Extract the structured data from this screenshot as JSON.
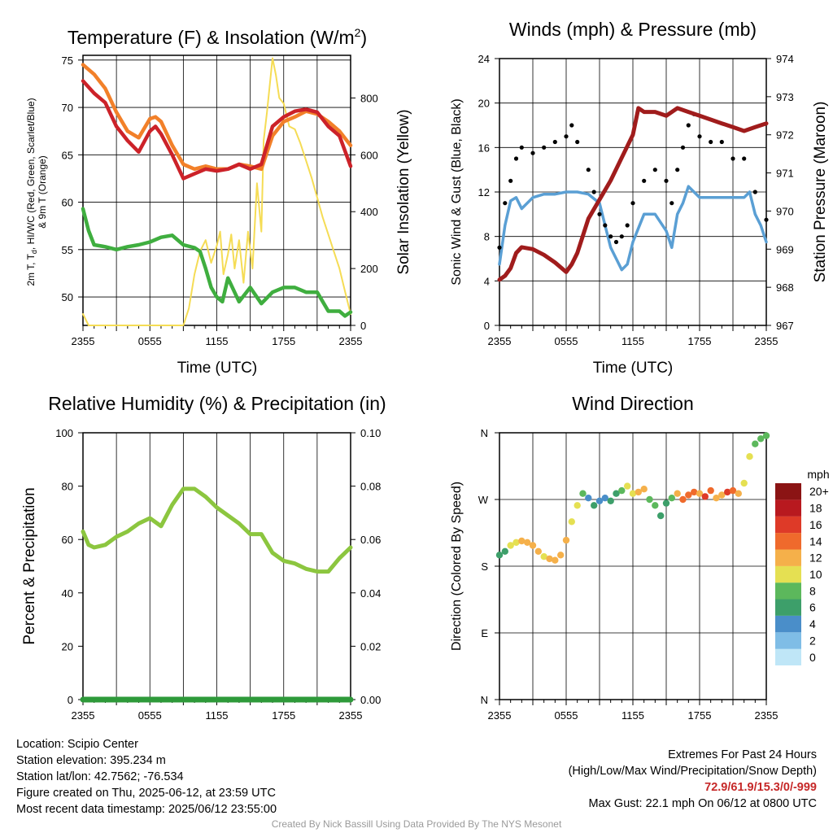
{
  "colors": {
    "red": "#cc2229",
    "orange": "#f28029",
    "green": "#3fae3f",
    "yellow": "#f5dc55",
    "blue": "#5a9fd4",
    "maroon": "#a01c1c",
    "gust": "#000000",
    "rh": "#8cc63f",
    "precip": "#2e9a3a",
    "extremes": "#c62828"
  },
  "panels": {
    "temp": {
      "title": "Temperature (F) & Insolation (W/m²)",
      "ylabel_line1": "2m T, Tₙ, HI/WC (Red, Green, Scarlet/Blue)",
      "ylabel_line1_base": "2m T, T",
      "ylabel_line1_sub": "d",
      "ylabel_line1_rest": ", HI/WC (Red, Green, Scarlet/Blue)",
      "ylabel_line2": "& 9m T (Orange)",
      "ylabel_right": "Solar Insolation (Yellow)",
      "xlabel": "Time (UTC)",
      "left_ticks": [
        "50",
        "55",
        "60",
        "65",
        "70",
        "75"
      ],
      "right_ticks": [
        "0",
        "200",
        "400",
        "600",
        "800"
      ],
      "x_ticks": [
        "2355",
        "0555",
        "1155",
        "1755",
        "2355"
      ]
    },
    "wind": {
      "title": "Winds (mph) & Pressure (mb)",
      "ylabel_left": "Sonic Wind & Gust (Blue, Black)",
      "ylabel_right": "Station Pressure (Maroon)",
      "xlabel": "Time (UTC)",
      "left_ticks": [
        "0",
        "4",
        "8",
        "12",
        "16",
        "20",
        "24"
      ],
      "right_ticks": [
        "967",
        "968",
        "969",
        "970",
        "971",
        "972",
        "973",
        "974"
      ],
      "x_ticks": [
        "2355",
        "0555",
        "1155",
        "1755",
        "2355"
      ]
    },
    "rh": {
      "title": "Relative Humidity (%) & Precipitation (in)",
      "ylabel_left": "Percent & Precipitation",
      "left_ticks": [
        "0",
        "20",
        "40",
        "60",
        "80",
        "100"
      ],
      "right_ticks": [
        "0.00",
        "0.02",
        "0.04",
        "0.06",
        "0.08",
        "0.10"
      ],
      "x_ticks": [
        "2355",
        "0555",
        "1155",
        "1755",
        "2355"
      ]
    },
    "dir": {
      "title": "Wind Direction",
      "ylabel_left": "Direction (Colored By Speed)",
      "left_ticks": [
        "N",
        "E",
        "S",
        "W",
        "N"
      ],
      "x_ticks": [
        "2355",
        "0555",
        "1155",
        "1755",
        "2355"
      ],
      "colorbar_title": "mph",
      "colorbar_labels": [
        "0",
        "2",
        "4",
        "6",
        "8",
        "10",
        "12",
        "14",
        "16",
        "18",
        "20+"
      ],
      "colorbar_colors": [
        "#bfe6f7",
        "#7fbde6",
        "#4a8ec9",
        "#3d9f6a",
        "#5cb85c",
        "#e5e052",
        "#f5b04a",
        "#ef6a2c",
        "#de3a28",
        "#b8191f",
        "#8b1414"
      ]
    }
  },
  "chart_data": [
    {
      "type": "line",
      "title": "Temperature (F) & Insolation (W/m²)",
      "xlabel": "Time (UTC)",
      "ylabel": "2m T, Td, HI/WC (Red, Green, Scarlet/Blue) & 9m T (Orange)",
      "ylabel_right": "Solar Insolation (Yellow)",
      "x_ticks": [
        "2355",
        "0555",
        "1155",
        "1755",
        "2355"
      ],
      "xlim": [
        0,
        24
      ],
      "ylim": [
        47,
        75.5
      ],
      "ylim_right": [
        0,
        950
      ],
      "grid": true,
      "series": [
        {
          "name": "2m T",
          "axis": "left",
          "x": [
            0,
            1,
            2,
            3,
            4,
            5,
            6,
            6.5,
            7,
            8,
            9,
            10,
            11,
            12,
            13,
            14,
            15,
            16,
            17,
            18,
            19,
            20,
            21,
            22,
            23,
            24
          ],
          "y": [
            72.8,
            71.5,
            70.5,
            68,
            66.5,
            65.3,
            67.5,
            68,
            67.2,
            65,
            62.5,
            63,
            63.5,
            63.3,
            63.5,
            64,
            63.5,
            64,
            68,
            69,
            69.6,
            69.8,
            69.5,
            68,
            67,
            63.8
          ]
        },
        {
          "name": "9m T",
          "axis": "left",
          "x": [
            0,
            1,
            2,
            3,
            4,
            5,
            6,
            6.5,
            7,
            8,
            9,
            10,
            11,
            12,
            13,
            14,
            15,
            16,
            17,
            18,
            19,
            20,
            21,
            22,
            23,
            24
          ],
          "y": [
            74.5,
            73.5,
            72,
            69.5,
            67.5,
            66.8,
            68.8,
            69,
            68.5,
            66,
            64,
            63.5,
            63.8,
            63.5,
            63.5,
            64,
            63.8,
            63.5,
            67,
            68.5,
            69,
            69.6,
            69.3,
            68.5,
            67.5,
            66
          ]
        },
        {
          "name": "Td",
          "axis": "left",
          "x": [
            0,
            0.5,
            1,
            2,
            3,
            4,
            5,
            6,
            7,
            8,
            9,
            10,
            10.5,
            11,
            11.5,
            12,
            12.5,
            13,
            14,
            15,
            16,
            17,
            18,
            19,
            20,
            21,
            22,
            23,
            23.5,
            24
          ],
          "y": [
            59.3,
            57,
            55.5,
            55.3,
            55,
            55.3,
            55.5,
            55.8,
            56.3,
            56.5,
            55.5,
            55.2,
            54.8,
            53,
            51,
            50,
            49.5,
            52,
            49.5,
            51,
            49.3,
            50.5,
            51,
            51,
            50.5,
            50.5,
            48.5,
            48.5,
            48,
            48.4
          ]
        },
        {
          "name": "Solar Insolation",
          "axis": "right",
          "x": [
            0,
            0.5,
            1,
            2,
            3,
            4,
            5,
            6,
            7,
            8,
            9,
            9.5,
            10,
            10.5,
            11,
            11.5,
            12,
            12.3,
            12.6,
            13,
            13.3,
            13.6,
            14,
            14.4,
            14.8,
            15.2,
            15.6,
            16,
            16.2,
            16.5,
            17,
            17.3,
            17.6,
            18,
            18.5,
            19,
            19.5,
            20,
            20.5,
            21,
            21.5,
            22,
            22.5,
            23,
            23.5,
            24
          ],
          "y": [
            40,
            0,
            0,
            0,
            0,
            0,
            0,
            0,
            0,
            0,
            0,
            60,
            180,
            260,
            300,
            220,
            280,
            330,
            180,
            250,
            320,
            200,
            300,
            150,
            330,
            200,
            500,
            330,
            650,
            750,
            940,
            880,
            800,
            780,
            700,
            690,
            640,
            580,
            520,
            450,
            380,
            320,
            260,
            200,
            120,
            40
          ]
        }
      ]
    },
    {
      "type": "line",
      "title": "Winds (mph) & Pressure (mb)",
      "xlabel": "Time (UTC)",
      "ylabel": "Sonic Wind & Gust (Blue, Black)",
      "ylabel_right": "Station Pressure (Maroon)",
      "x_ticks": [
        "2355",
        "0555",
        "1155",
        "1755",
        "2355"
      ],
      "xlim": [
        0,
        24
      ],
      "ylim": [
        0,
        24
      ],
      "ylim_right": [
        967,
        974
      ],
      "grid": true,
      "series": [
        {
          "name": "Sonic Wind",
          "axis": "left",
          "x": [
            0,
            0.5,
            1,
            1.5,
            2,
            3,
            4,
            5,
            6,
            7,
            8,
            9,
            9.5,
            10,
            10.5,
            11,
            11.5,
            12,
            13,
            14,
            15,
            15.5,
            16,
            16.5,
            17,
            18,
            19,
            20,
            21,
            22,
            22.5,
            23,
            23.5,
            24
          ],
          "y": [
            5.5,
            9,
            11.2,
            11.5,
            10.5,
            11.5,
            11.8,
            11.8,
            12,
            12,
            11.8,
            11,
            9,
            7,
            6,
            5,
            5.5,
            7.5,
            10,
            10,
            8.5,
            7,
            10,
            11,
            12.5,
            11.5,
            11.5,
            11.5,
            11.5,
            11.5,
            12,
            10,
            9,
            7.5
          ]
        },
        {
          "name": "Gust",
          "axis": "left",
          "x": [
            0,
            0.5,
            1,
            1.5,
            2,
            3,
            4,
            5,
            6,
            6.5,
            7,
            8,
            8.5,
            9,
            9.5,
            10,
            10.5,
            11,
            11.5,
            12,
            13,
            14,
            15,
            15.5,
            16,
            16.5,
            17,
            17.5,
            18,
            19,
            20,
            21,
            22,
            23,
            24
          ],
          "y": [
            7,
            11,
            13,
            15,
            16,
            15.5,
            16,
            16.5,
            17,
            18,
            16.5,
            14,
            12,
            10,
            9,
            8,
            7.5,
            8,
            9,
            11,
            13,
            14,
            13,
            11,
            14,
            16,
            18,
            19,
            17,
            16.5,
            16.5,
            15,
            15,
            12,
            9.5
          ]
        },
        {
          "name": "Station Pressure",
          "axis": "right",
          "x": [
            0,
            0.5,
            1,
            1.5,
            2,
            3,
            4,
            5,
            6,
            6.5,
            7,
            8,
            9,
            10,
            11,
            12,
            12.5,
            13,
            14,
            15,
            16,
            17,
            18,
            19,
            20,
            21,
            22,
            23,
            24
          ],
          "y": [
            968.2,
            968.3,
            968.5,
            968.9,
            969.05,
            969,
            968.85,
            968.65,
            968.4,
            968.6,
            968.9,
            969.8,
            970.3,
            970.8,
            971.4,
            972,
            972.7,
            972.6,
            972.6,
            972.5,
            972.7,
            972.6,
            972.5,
            972.4,
            972.3,
            972.2,
            972.1,
            972.2,
            972.3
          ]
        }
      ]
    },
    {
      "type": "line",
      "title": "Relative Humidity (%) & Precipitation (in)",
      "ylabel": "Percent & Precipitation",
      "x_ticks": [
        "2355",
        "0555",
        "1155",
        "1755",
        "2355"
      ],
      "xlim": [
        0,
        24
      ],
      "ylim": [
        0,
        100
      ],
      "ylim_right": [
        0,
        0.1
      ],
      "grid": true,
      "series": [
        {
          "name": "Relative Humidity",
          "axis": "left",
          "x": [
            0,
            0.5,
            1,
            2,
            3,
            4,
            5,
            6,
            7,
            8,
            9,
            10,
            11,
            12,
            13,
            14,
            15,
            16,
            17,
            18,
            19,
            20,
            21,
            22,
            23,
            24
          ],
          "y": [
            63,
            58,
            57,
            58,
            61,
            63,
            66,
            68,
            65,
            73,
            79,
            79,
            76,
            72,
            69,
            66,
            62,
            62,
            55,
            52,
            51,
            49,
            48,
            48,
            53,
            57
          ]
        },
        {
          "name": "Precipitation",
          "axis": "right",
          "x": [
            0,
            24
          ],
          "y": [
            0,
            0
          ]
        }
      ]
    },
    {
      "type": "scatter",
      "title": "Wind Direction",
      "ylabel": "Direction (Colored By Speed)",
      "x_ticks": [
        "2355",
        "0555",
        "1155",
        "1755",
        "2355"
      ],
      "y_ticks": [
        "N",
        "E",
        "S",
        "W",
        "N"
      ],
      "xlim": [
        0,
        24
      ],
      "ylim": [
        0,
        360
      ],
      "colorbar": {
        "title": "mph",
        "min": 0,
        "max": 20
      },
      "grid": true,
      "x": [
        0,
        0.5,
        1,
        1.5,
        2,
        2.5,
        3,
        3.5,
        4,
        4.5,
        5,
        5.5,
        6,
        6.5,
        7,
        7.5,
        8,
        8.5,
        9,
        9.5,
        10,
        10.5,
        11,
        11.5,
        12,
        12.5,
        13,
        13.5,
        14,
        14.5,
        15,
        15.5,
        16,
        16.5,
        17,
        17.5,
        18,
        18.5,
        19,
        19.5,
        20,
        20.5,
        21,
        21.5,
        22,
        22.5,
        23,
        23.5,
        24
      ],
      "y": [
        195,
        200,
        208,
        212,
        214,
        212,
        208,
        200,
        193,
        190,
        188,
        195,
        215,
        240,
        262,
        278,
        272,
        262,
        268,
        272,
        268,
        278,
        282,
        288,
        278,
        280,
        284,
        270,
        262,
        248,
        265,
        272,
        278,
        270,
        276,
        280,
        278,
        274,
        282,
        272,
        276,
        280,
        282,
        278,
        292,
        328,
        345,
        352,
        356
      ],
      "speed": [
        6,
        7,
        10,
        11,
        12,
        12,
        12,
        12,
        11,
        12,
        12,
        12,
        12,
        11,
        10,
        9,
        5,
        6,
        5,
        4,
        6,
        7,
        9,
        10,
        11,
        12,
        13,
        9,
        8,
        7,
        6,
        9,
        12,
        14,
        15,
        14,
        13,
        16,
        14,
        13,
        12,
        16,
        14,
        13,
        11,
        10,
        9,
        8,
        8
      ]
    }
  ],
  "info": {
    "location": "Location: Scipio Center",
    "elevation": "Station elevation: 395.234 m",
    "latlon": "Station lat/lon: 42.7562; -76.534",
    "created": "Figure created on Thu, 2025-06-12, at 23:59 UTC",
    "recent": "Most recent data timestamp: 2025/06/12 23:55:00"
  },
  "extremes": {
    "title": "Extremes For Past 24 Hours",
    "subtitle": "(High/Low/Max Wind/Precipitation/Snow Depth)",
    "values": "72.9/61.9/15.3/0/-999",
    "gust": "Max Gust: 22.1 mph On 06/12 at 0800 UTC"
  },
  "credit": "Created By Nick Bassill Using Data Provided By The NYS Mesonet"
}
